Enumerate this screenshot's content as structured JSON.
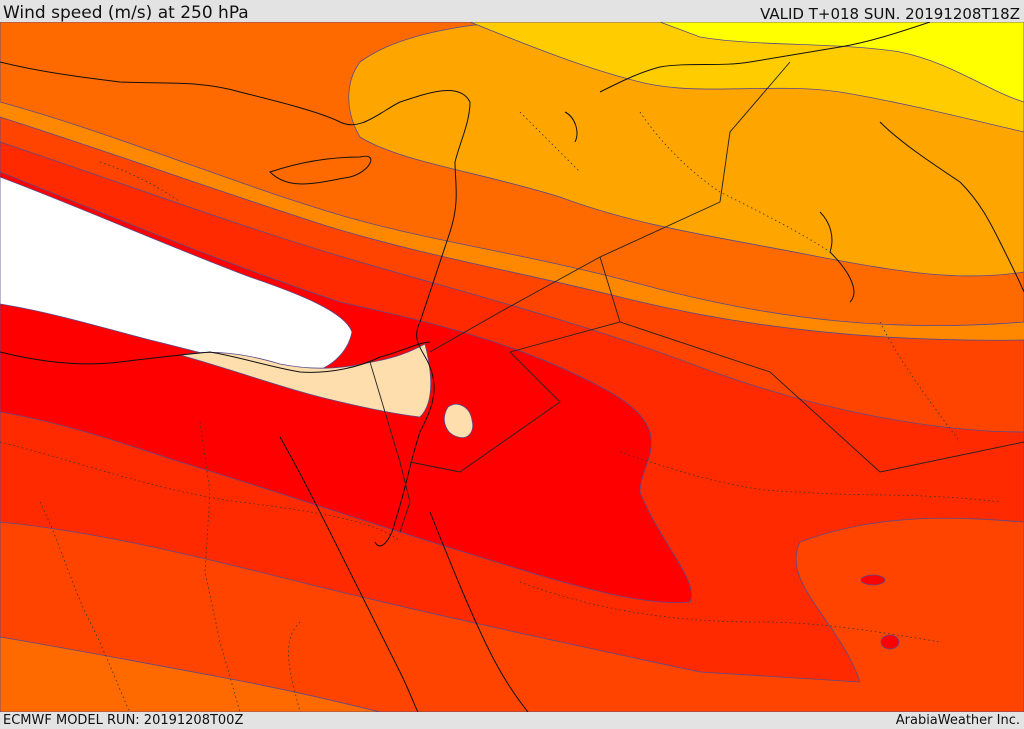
{
  "header": {
    "title": "Wind speed (m/s) at 250 hPa",
    "valid": "VALID T+018 SUN. 20191208T18Z"
  },
  "footer": {
    "model_run": "ECMWF MODEL RUN: 20191208T00Z",
    "credit": "ArabiaWeather Inc."
  },
  "colors": {
    "yellow": "#ffff00",
    "gold": "#ffcc00",
    "amber": "#ffa500",
    "orange_light": "#ff8800",
    "orange": "#ff6a00",
    "orange_red": "#ff4400",
    "red_orange": "#ff2a00",
    "red": "#ff0000",
    "peach": "#ffdead",
    "white": "#ffffff",
    "contour": "#5a4a8a"
  }
}
